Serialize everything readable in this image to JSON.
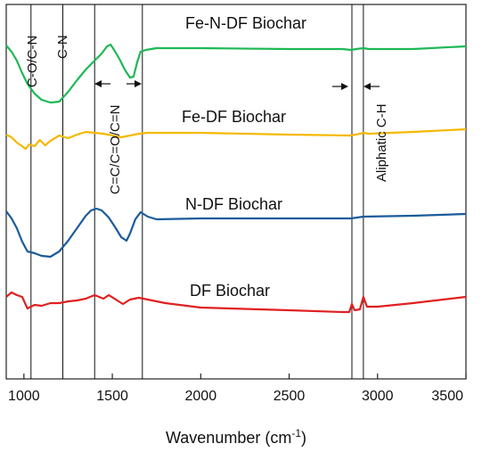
{
  "chart_data": {
    "type": "line",
    "xlabel": "Wavenumber (cm",
    "xlabel_sup": "-1",
    "xlabel_close": ")",
    "ylabel": "",
    "xlim": [
      900,
      3500
    ],
    "xticks": [
      {
        "value": 1000,
        "label": "1000"
      },
      {
        "value": 1500,
        "label": "1500"
      },
      {
        "value": 2000,
        "label": "2000"
      },
      {
        "value": 2500,
        "label": "2500"
      },
      {
        "value": 3000,
        "label": "3000"
      },
      {
        "value": 3500,
        "label": "3500"
      }
    ],
    "grid": false,
    "series": [
      {
        "name": "Fe-N-DF Biochar",
        "color": "#1db954",
        "points": [
          [
            900,
            51
          ],
          [
            930,
            58
          ],
          [
            960,
            68
          ],
          [
            990,
            82
          ],
          [
            1020,
            94
          ],
          [
            1060,
            105
          ],
          [
            1100,
            112
          ],
          [
            1150,
            115
          ],
          [
            1200,
            114
          ],
          [
            1250,
            103
          ],
          [
            1300,
            90
          ],
          [
            1350,
            78
          ],
          [
            1400,
            68
          ],
          [
            1440,
            60
          ],
          [
            1470,
            52
          ],
          [
            1490,
            50
          ],
          [
            1510,
            56
          ],
          [
            1540,
            66
          ],
          [
            1570,
            78
          ],
          [
            1600,
            87
          ],
          [
            1620,
            86
          ],
          [
            1640,
            70
          ],
          [
            1660,
            58
          ],
          [
            1690,
            56
          ],
          [
            1750,
            54
          ],
          [
            2000,
            54
          ],
          [
            2500,
            55
          ],
          [
            2800,
            55
          ],
          [
            2850,
            56
          ],
          [
            2880,
            55
          ],
          [
            2920,
            54
          ],
          [
            2950,
            55
          ],
          [
            3200,
            55
          ],
          [
            3500,
            52
          ]
        ]
      },
      {
        "name": "Fe-DF Biochar",
        "color": "#f5b800",
        "points": [
          [
            900,
            151
          ],
          [
            930,
            154
          ],
          [
            960,
            160
          ],
          [
            990,
            164
          ],
          [
            1010,
            167
          ],
          [
            1030,
            162
          ],
          [
            1060,
            164
          ],
          [
            1090,
            157
          ],
          [
            1120,
            163
          ],
          [
            1150,
            158
          ],
          [
            1200,
            152
          ],
          [
            1250,
            155
          ],
          [
            1300,
            151
          ],
          [
            1350,
            148
          ],
          [
            1400,
            149
          ],
          [
            1450,
            150
          ],
          [
            1500,
            152
          ],
          [
            1550,
            154
          ],
          [
            1600,
            152
          ],
          [
            1650,
            150
          ],
          [
            1700,
            149
          ],
          [
            2000,
            149
          ],
          [
            2500,
            151
          ],
          [
            2850,
            152
          ],
          [
            2900,
            150
          ],
          [
            2920,
            149
          ],
          [
            2950,
            150
          ],
          [
            3200,
            148
          ],
          [
            3500,
            145
          ]
        ]
      },
      {
        "name": "N-DF Biochar",
        "color": "#1a5b9a",
        "points": [
          [
            900,
            237
          ],
          [
            930,
            245
          ],
          [
            960,
            256
          ],
          [
            990,
            271
          ],
          [
            1020,
            282
          ],
          [
            1060,
            284
          ],
          [
            1100,
            287
          ],
          [
            1150,
            288
          ],
          [
            1200,
            282
          ],
          [
            1250,
            270
          ],
          [
            1300,
            256
          ],
          [
            1350,
            242
          ],
          [
            1380,
            236
          ],
          [
            1410,
            234
          ],
          [
            1440,
            236
          ],
          [
            1480,
            244
          ],
          [
            1520,
            256
          ],
          [
            1550,
            266
          ],
          [
            1580,
            270
          ],
          [
            1600,
            262
          ],
          [
            1630,
            246
          ],
          [
            1660,
            238
          ],
          [
            1700,
            243
          ],
          [
            1750,
            246
          ],
          [
            2000,
            245
          ],
          [
            2500,
            245
          ],
          [
            2850,
            245
          ],
          [
            2920,
            243
          ],
          [
            3200,
            242
          ],
          [
            3500,
            240
          ]
        ]
      },
      {
        "name": "DF Biochar",
        "color": "#e02020",
        "points": [
          [
            900,
            333
          ],
          [
            930,
            328
          ],
          [
            960,
            331
          ],
          [
            990,
            333
          ],
          [
            1020,
            346
          ],
          [
            1060,
            342
          ],
          [
            1100,
            343
          ],
          [
            1150,
            340
          ],
          [
            1200,
            340
          ],
          [
            1250,
            338
          ],
          [
            1300,
            337
          ],
          [
            1350,
            335
          ],
          [
            1400,
            331
          ],
          [
            1450,
            335
          ],
          [
            1480,
            331
          ],
          [
            1520,
            336
          ],
          [
            1560,
            341
          ],
          [
            1600,
            336
          ],
          [
            1650,
            334
          ],
          [
            1700,
            336
          ],
          [
            1800,
            340
          ],
          [
            2000,
            345
          ],
          [
            2500,
            348
          ],
          [
            2800,
            350
          ],
          [
            2840,
            350
          ],
          [
            2855,
            341
          ],
          [
            2870,
            348
          ],
          [
            2900,
            347
          ],
          [
            2920,
            333
          ],
          [
            2940,
            344
          ],
          [
            3000,
            344
          ],
          [
            3200,
            340
          ],
          [
            3500,
            333
          ]
        ]
      }
    ],
    "labels": [
      {
        "name": "label-fe-n-df",
        "text": "Fe-N-DF Biochar"
      },
      {
        "name": "label-fe-df",
        "text": "Fe-DF Biochar"
      },
      {
        "name": "label-n-df",
        "text": "N-DF Biochar"
      },
      {
        "name": "label-df",
        "text": "DF Biochar"
      }
    ],
    "annotations": {
      "vlines": [
        1040,
        1220,
        1400,
        1670,
        2855,
        2920
      ],
      "texts": [
        {
          "name": "anno-co-cn",
          "text": "C-O/C-N"
        },
        {
          "name": "anno-c-n",
          "text": "C-N"
        },
        {
          "name": "anno-cc",
          "text": "C=C/C=O/C=N"
        },
        {
          "name": "anno-aliphatic",
          "text": "Aliphatic C-H"
        }
      ]
    }
  }
}
